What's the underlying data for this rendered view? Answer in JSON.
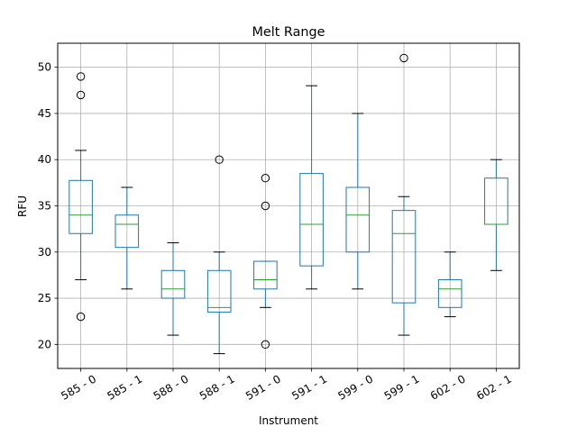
{
  "chart_data": {
    "type": "boxplot",
    "title": "Melt Range",
    "xlabel": "Instrument",
    "ylabel": "RFU",
    "ylim": [
      17.4,
      52.6
    ],
    "yticks": [
      20,
      25,
      30,
      35,
      40,
      45,
      50
    ],
    "grid": true,
    "x_tick_rotation": 30,
    "colors": {
      "box": "#1f77b4",
      "median": "#2ca02c",
      "whisker": "#000000",
      "grid": "#b0b0b0"
    },
    "categories": [
      "585 - 0",
      "585 - 1",
      "588 - 0",
      "588 - 1",
      "591 - 0",
      "591 - 1",
      "599 - 0",
      "599 - 1",
      "602 - 0",
      "602 - 1"
    ],
    "boxes": [
      {
        "category": "585 - 0",
        "whisker_low": 27,
        "q1": 32,
        "median": 34,
        "q3": 37.75,
        "whisker_high": 41,
        "outliers": [
          49,
          47,
          23
        ]
      },
      {
        "category": "585 - 1",
        "whisker_low": 26,
        "q1": 30.5,
        "median": 33,
        "q3": 34,
        "whisker_high": 37,
        "outliers": []
      },
      {
        "category": "588 - 0",
        "whisker_low": 21,
        "q1": 25,
        "median": 26,
        "q3": 28,
        "whisker_high": 31,
        "outliers": []
      },
      {
        "category": "588 - 1",
        "whisker_low": 19,
        "q1": 23.5,
        "median": 24,
        "q3": 28,
        "whisker_high": 30,
        "outliers": [
          40
        ]
      },
      {
        "category": "591 - 0",
        "whisker_low": 24,
        "q1": 26,
        "median": 27,
        "q3": 29,
        "whisker_high": 29,
        "outliers": [
          38,
          35,
          20
        ]
      },
      {
        "category": "591 - 1",
        "whisker_low": 26,
        "q1": 28.5,
        "median": 33,
        "q3": 38.5,
        "whisker_high": 48,
        "outliers": []
      },
      {
        "category": "599 - 0",
        "whisker_low": 26,
        "q1": 30,
        "median": 34,
        "q3": 37,
        "whisker_high": 45,
        "outliers": []
      },
      {
        "category": "599 - 1",
        "whisker_low": 21,
        "q1": 24.5,
        "median": 32,
        "q3": 34.5,
        "whisker_high": 36,
        "outliers": [
          51
        ]
      },
      {
        "category": "602 - 0",
        "whisker_low": 23,
        "q1": 24,
        "median": 26,
        "q3": 27,
        "whisker_high": 30,
        "outliers": []
      },
      {
        "category": "602 - 1",
        "whisker_low": 28,
        "q1": 33,
        "median": 33,
        "q3": 38,
        "whisker_high": 40,
        "outliers": []
      }
    ]
  }
}
